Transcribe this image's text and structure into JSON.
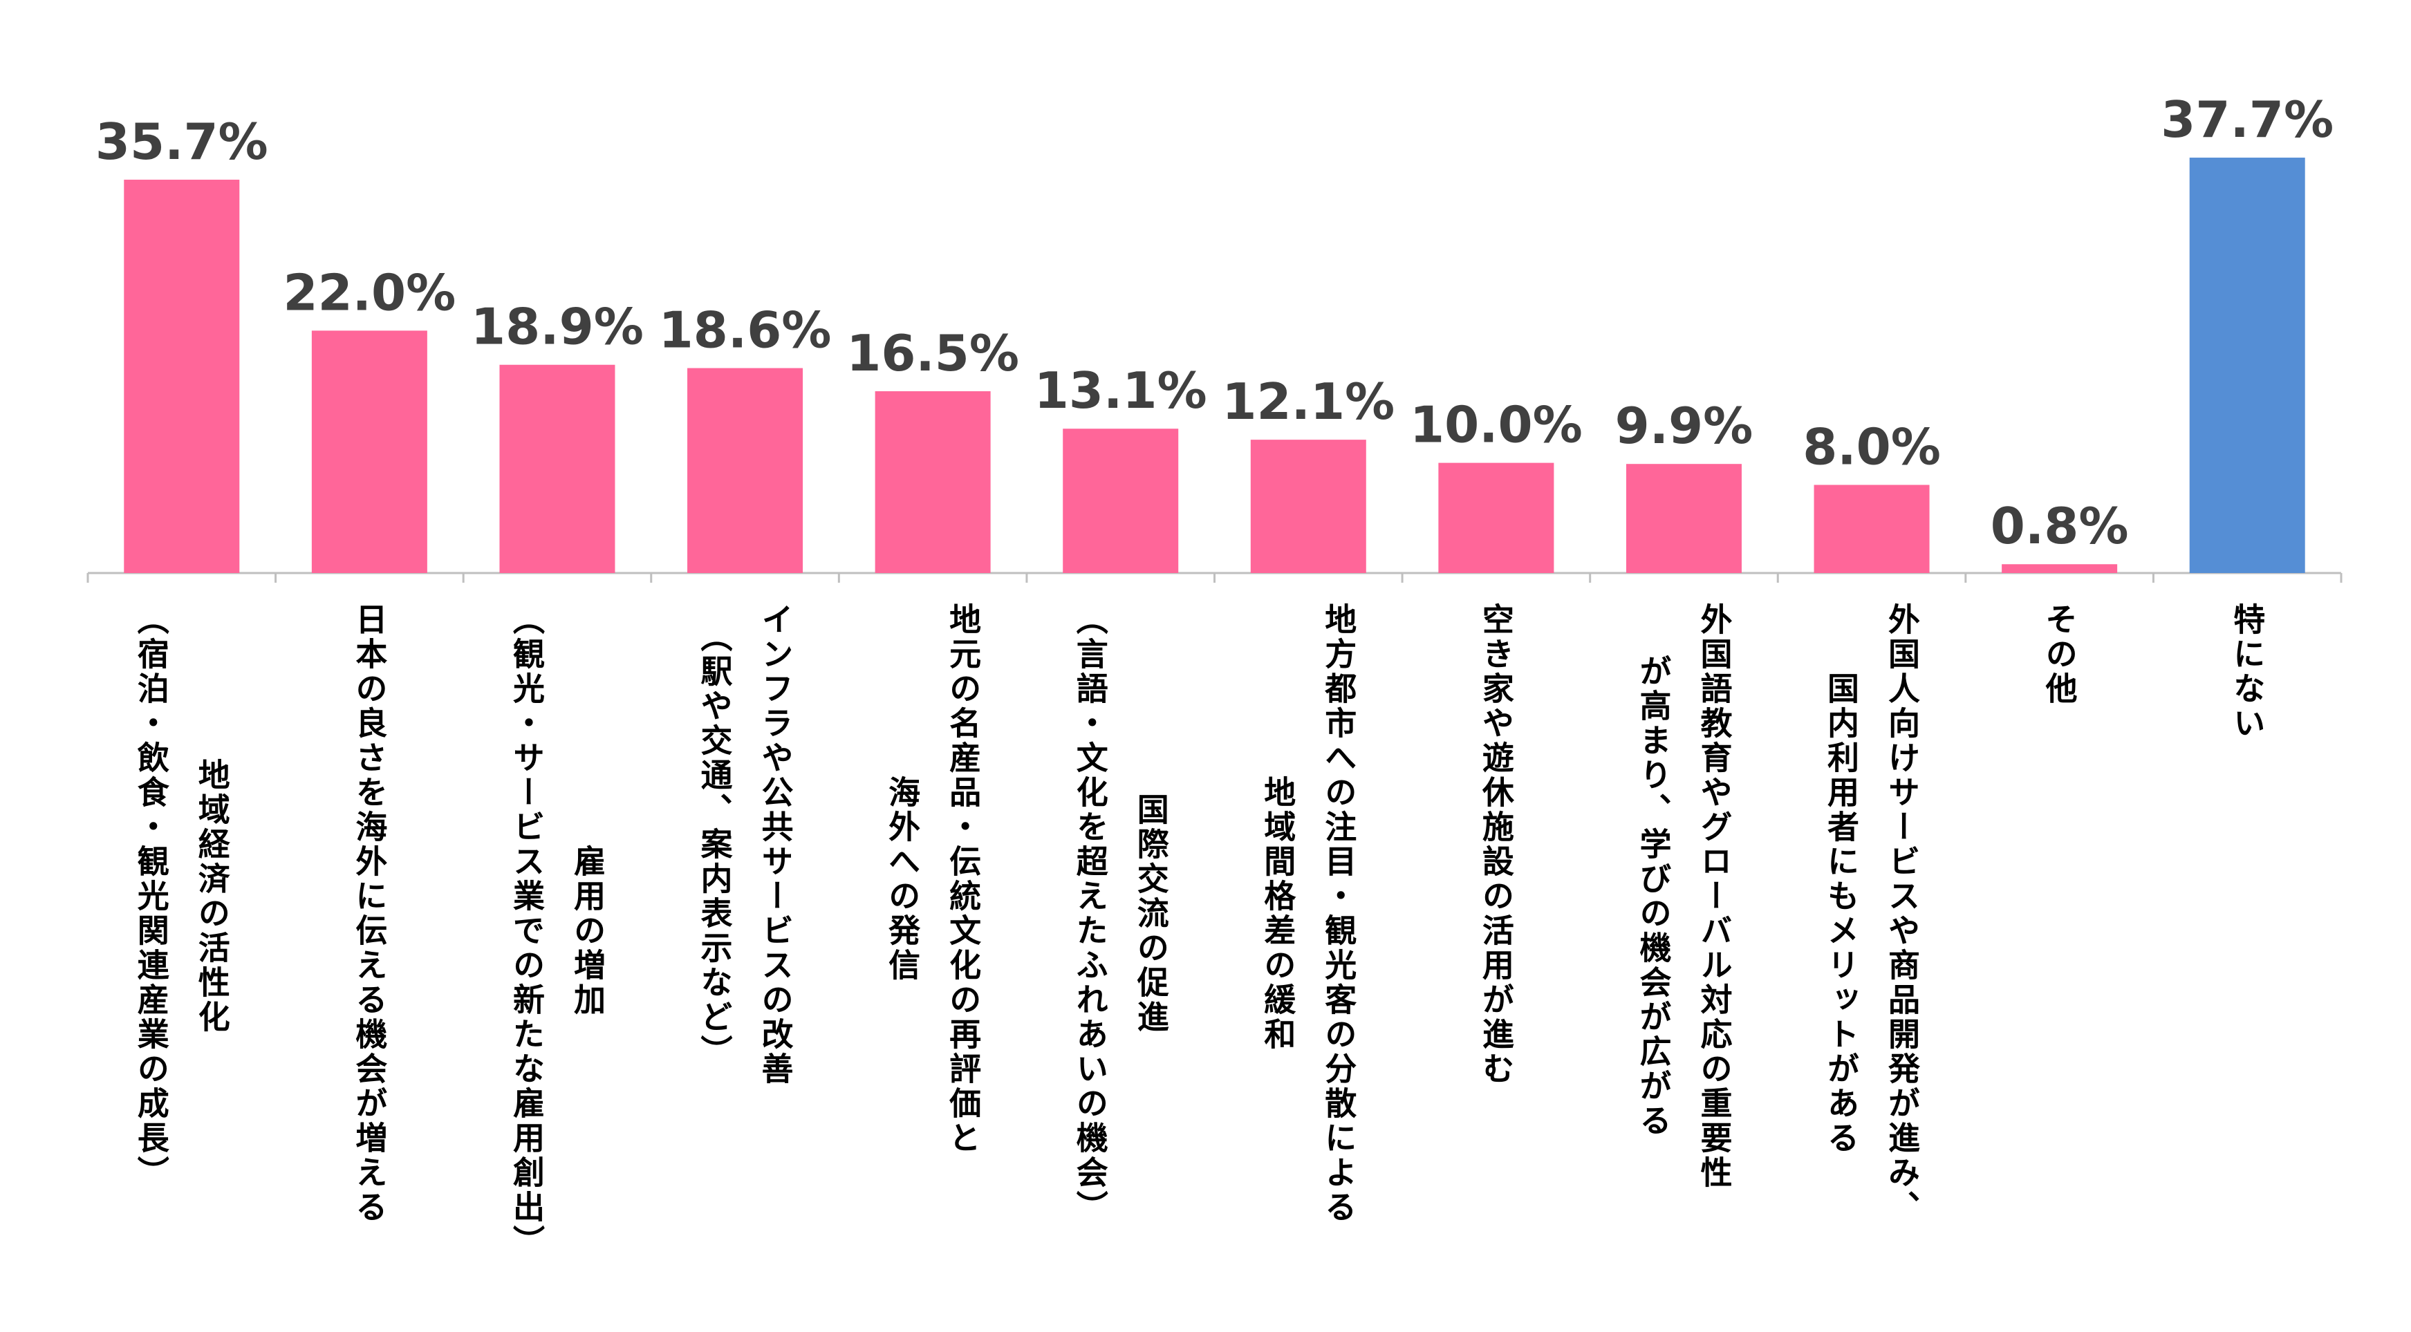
{
  "chart_data": {
    "type": "bar",
    "categories": [
      [
        "地域経済の活性化",
        "（宿泊・飲食・観光関連産業の成長）"
      ],
      [
        "日本の良さを海外に伝える機会が増える"
      ],
      [
        "雇用の増加",
        "（観光・サービス業での新たな雇用創出）"
      ],
      [
        "インフラや公共サービスの改善",
        "（駅や交通、案内表示など）"
      ],
      [
        "地元の名産品・伝統文化の再評価と",
        "海外への発信"
      ],
      [
        "国際交流の促進",
        "（言語・文化を超えたふれあいの機会）"
      ],
      [
        "地方都市への注目・観光客の分散による",
        "地域間格差の緩和"
      ],
      [
        "空き家や遊休施設の活用が進む"
      ],
      [
        "外国語教育やグローバル対応の重要性",
        "が高まり、学びの機会が広がる"
      ],
      [
        "外国人向けサービスや商品開発が進み、",
        "国内利用者にもメリットがある"
      ],
      [
        "その他"
      ],
      [
        "特にない"
      ]
    ],
    "values": [
      35.7,
      22.0,
      18.9,
      18.6,
      16.5,
      13.1,
      12.1,
      10.0,
      9.9,
      8.0,
      0.8,
      37.7
    ],
    "value_labels": [
      "35.7%",
      "22.0%",
      "18.9%",
      "18.6%",
      "16.5%",
      "13.1%",
      "12.1%",
      "10.0%",
      "9.9%",
      "8.0%",
      "0.8%",
      "37.7%"
    ],
    "bar_colors": [
      "#FF6699",
      "#FF6699",
      "#FF6699",
      "#FF6699",
      "#FF6699",
      "#FF6699",
      "#FF6699",
      "#FF6699",
      "#FF6699",
      "#FF6699",
      "#FF6699",
      "#558ED5"
    ],
    "ylim": [
      0,
      40
    ],
    "grid": false,
    "legend": "none",
    "title": "",
    "xlabel": "",
    "ylabel": ""
  },
  "colors": {
    "highlight": "#FF6699",
    "none_answer": "#558ED5",
    "value_text": "#404040",
    "axis": "#BFBFBF"
  }
}
